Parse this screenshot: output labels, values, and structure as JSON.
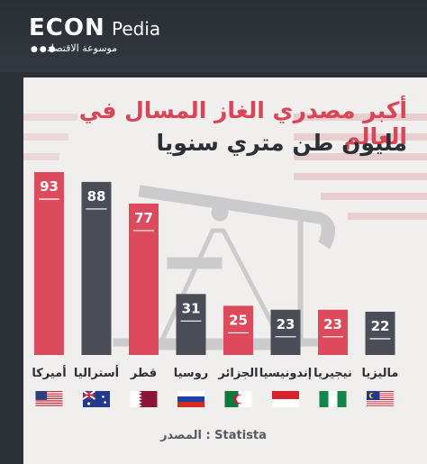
{
  "brand": {
    "name": "ECON",
    "suffix": "Pedia",
    "tagline": "موسوعة الاقتصاد",
    "dots": "●●●"
  },
  "heading": {
    "title": "أكبر مصدري الغاز المسال في العالم",
    "subtitle": "مليون طن متري سنويا"
  },
  "source": "المصدر : Statista",
  "colors": {
    "red": "#dd4a5c",
    "dark": "#4a4d55"
  },
  "chart_data": {
    "type": "bar",
    "title": "أكبر مصدري الغاز المسال في العالم",
    "subtitle": "مليون طن متري سنويا",
    "categories": [
      "أميركا",
      "أستراليا",
      "قطر",
      "روسيا",
      "الجزائر",
      "إندونيسيا",
      "نيجيريا",
      "ماليزيا"
    ],
    "values": [
      93,
      88,
      77,
      31,
      25,
      23,
      23,
      22
    ],
    "bar_colors": [
      "red",
      "dark",
      "red",
      "dark",
      "red",
      "dark",
      "red",
      "dark"
    ],
    "flags": [
      "us-flag-icon",
      "australia-flag-icon",
      "qatar-flag-icon",
      "russia-flag-icon",
      "algeria-flag-icon",
      "indonesia-flag-icon",
      "nigeria-flag-icon",
      "malaysia-flag-icon"
    ],
    "ylim": [
      0,
      93
    ],
    "grid": false,
    "legend": "none"
  }
}
